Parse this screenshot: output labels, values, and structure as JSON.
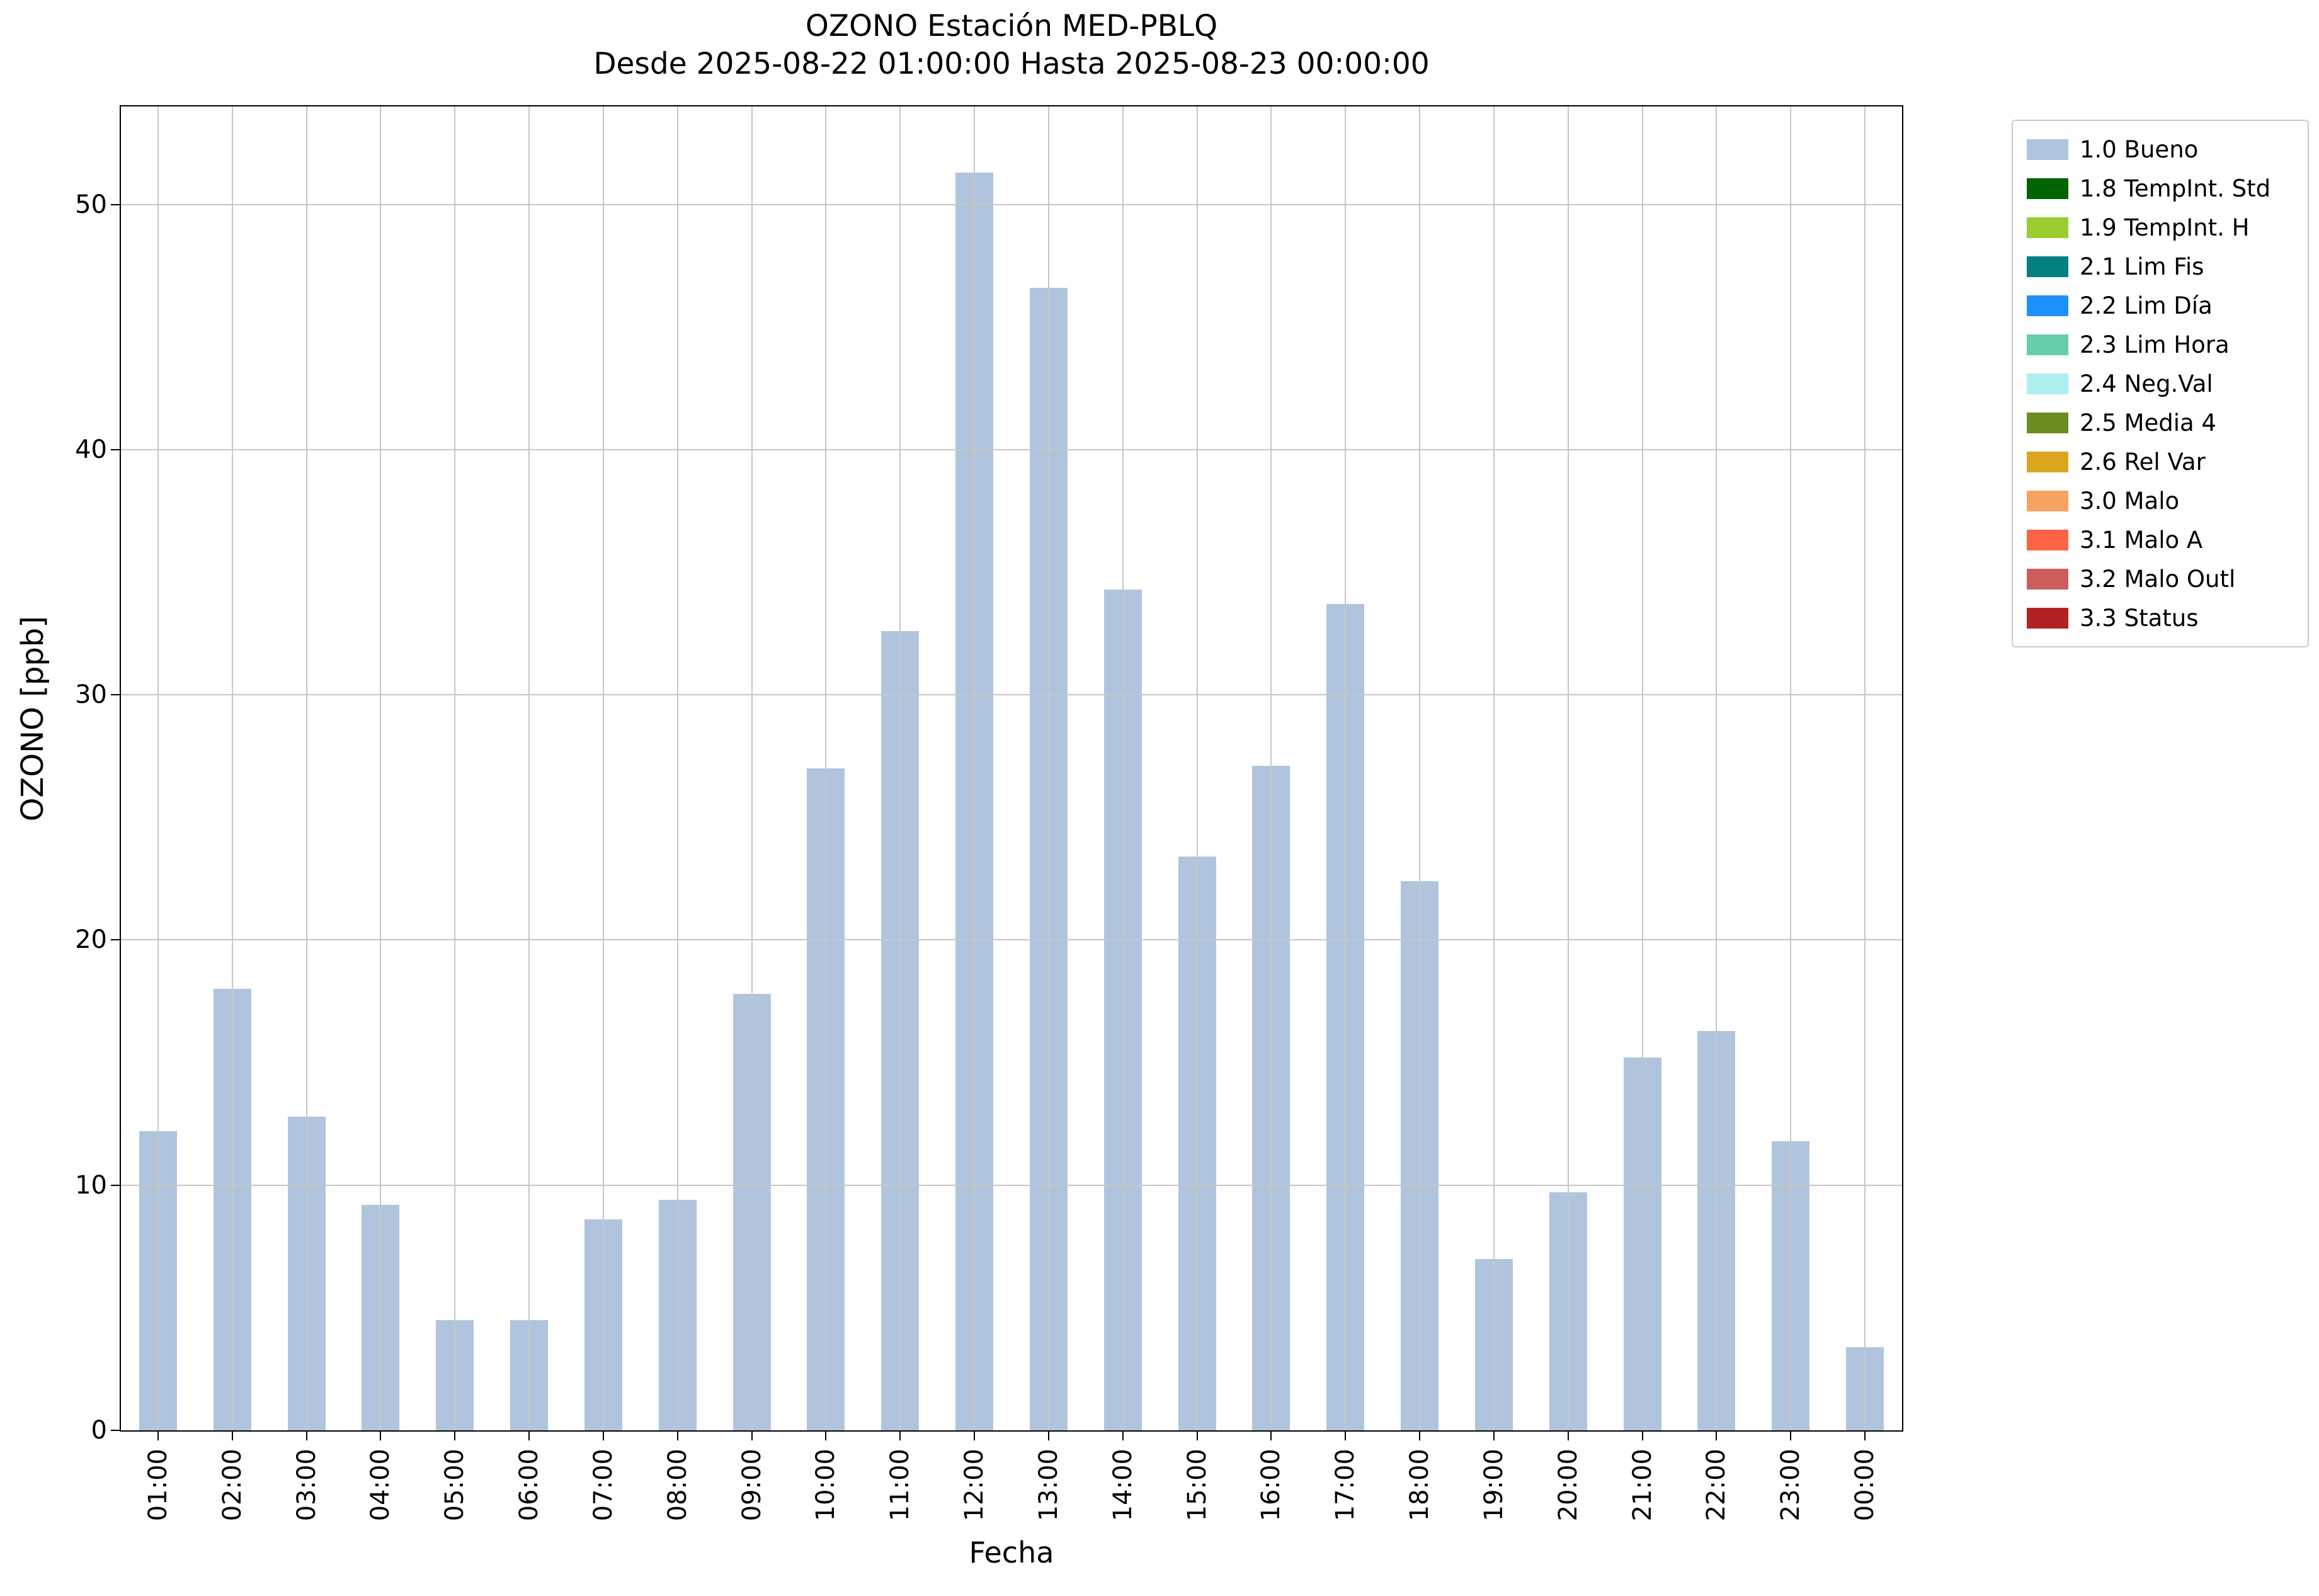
{
  "title": {
    "line1": "OZONO Estación MED-PBLQ",
    "line2": "Desde 2025-08-22 01:00:00 Hasta 2025-08-23 00:00:00"
  },
  "axes": {
    "xlabel": "Fecha",
    "ylabel": "OZONO [ppb]",
    "yticks": [
      0,
      10,
      20,
      30,
      40,
      50
    ],
    "ylim": [
      0,
      54
    ]
  },
  "chart_data": {
    "type": "bar",
    "title": "OZONO Estación MED-PBLQ — Desde 2025-08-22 01:00:00 Hasta 2025-08-23 00:00:00",
    "xlabel": "Fecha",
    "ylabel": "OZONO [ppb]",
    "ylim": [
      0,
      54
    ],
    "grid": true,
    "grid_color": "#c6c6c6",
    "bar_color": "#b0c4de",
    "legend_position": "outside upper right",
    "categories": [
      "01:00",
      "02:00",
      "03:00",
      "04:00",
      "05:00",
      "06:00",
      "07:00",
      "08:00",
      "09:00",
      "10:00",
      "11:00",
      "12:00",
      "13:00",
      "14:00",
      "15:00",
      "16:00",
      "17:00",
      "18:00",
      "19:00",
      "20:00",
      "21:00",
      "22:00",
      "23:00",
      "00:00"
    ],
    "values": [
      12.2,
      18.0,
      12.8,
      9.2,
      4.5,
      4.5,
      8.6,
      9.4,
      17.8,
      27.0,
      32.6,
      51.3,
      46.6,
      34.3,
      23.4,
      27.1,
      33.7,
      22.4,
      7.0,
      9.7,
      15.2,
      16.3,
      11.8,
      3.4
    ]
  },
  "legend": {
    "items": [
      {
        "label": "1.0 Bueno",
        "color": "#b0c4de"
      },
      {
        "label": "1.8 TempInt. Std",
        "color": "#006400"
      },
      {
        "label": "1.9 TempInt. H",
        "color": "#9acd32"
      },
      {
        "label": "2.1 Lim Fis",
        "color": "#008080"
      },
      {
        "label": "2.2 Lim Día",
        "color": "#1e90ff"
      },
      {
        "label": "2.3 Lim Hora",
        "color": "#66cdaa"
      },
      {
        "label": "2.4 Neg.Val",
        "color": "#afeeee"
      },
      {
        "label": "2.5 Media 4",
        "color": "#6b8e23"
      },
      {
        "label": "2.6 Rel Var",
        "color": "#daa520"
      },
      {
        "label": "3.0 Malo",
        "color": "#f4a460"
      },
      {
        "label": "3.1 Malo A",
        "color": "#ff6347"
      },
      {
        "label": "3.2 Malo Outl",
        "color": "#cd5c5c"
      },
      {
        "label": "3.3 Status",
        "color": "#b22222"
      }
    ]
  }
}
